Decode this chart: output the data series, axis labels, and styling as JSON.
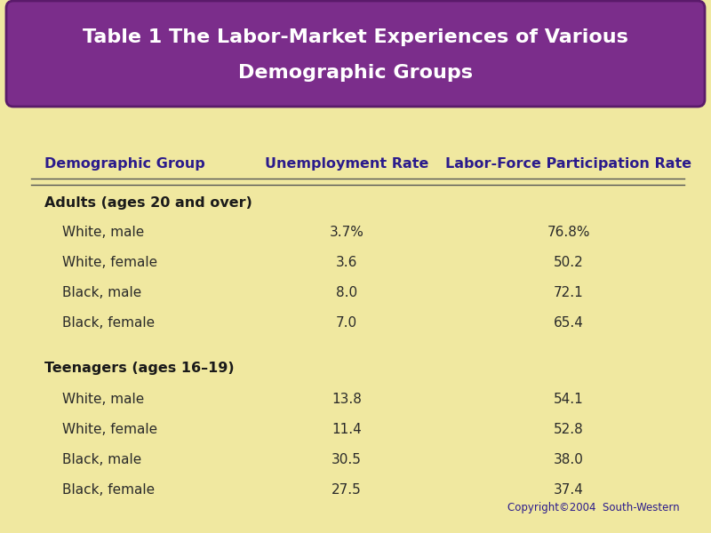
{
  "title_line1": "Table 1 The Labor-Market Experiences of Various",
  "title_line2": "Demographic Groups",
  "title_bg_color": "#7B2D8B",
  "title_text_color": "#FFFFFF",
  "bg_color": "#F0E8A0",
  "header_color": "#2B1B8C",
  "col_headers": [
    "Demographic Group",
    "Unemployment Rate",
    "Labor-Force Participation Rate"
  ],
  "section1_label": "Adults (ages 20 and over)",
  "section1_rows": [
    [
      "White, male",
      "3.7%",
      "76.8%"
    ],
    [
      "White, female",
      "3.6",
      "50.2"
    ],
    [
      "Black, male",
      "8.0",
      "72.1"
    ],
    [
      "Black, female",
      "7.0",
      "65.4"
    ]
  ],
  "section2_label": "Teenagers (ages 16–19)",
  "section2_rows": [
    [
      "White, male",
      "13.8",
      "54.1"
    ],
    [
      "White, female",
      "11.4",
      "52.8"
    ],
    [
      "Black, male",
      "30.5",
      "38.0"
    ],
    [
      "Black, female",
      "27.5",
      "37.4"
    ]
  ],
  "copyright": "Copyright©2004  South-Western",
  "copyright_color": "#2B1B8C",
  "data_text_color": "#2A2A2A",
  "section_label_color": "#1A1A1A",
  "header_fontsize": 11.5,
  "data_fontsize": 11,
  "section_fontsize": 11.5,
  "title_fontsize": 16
}
